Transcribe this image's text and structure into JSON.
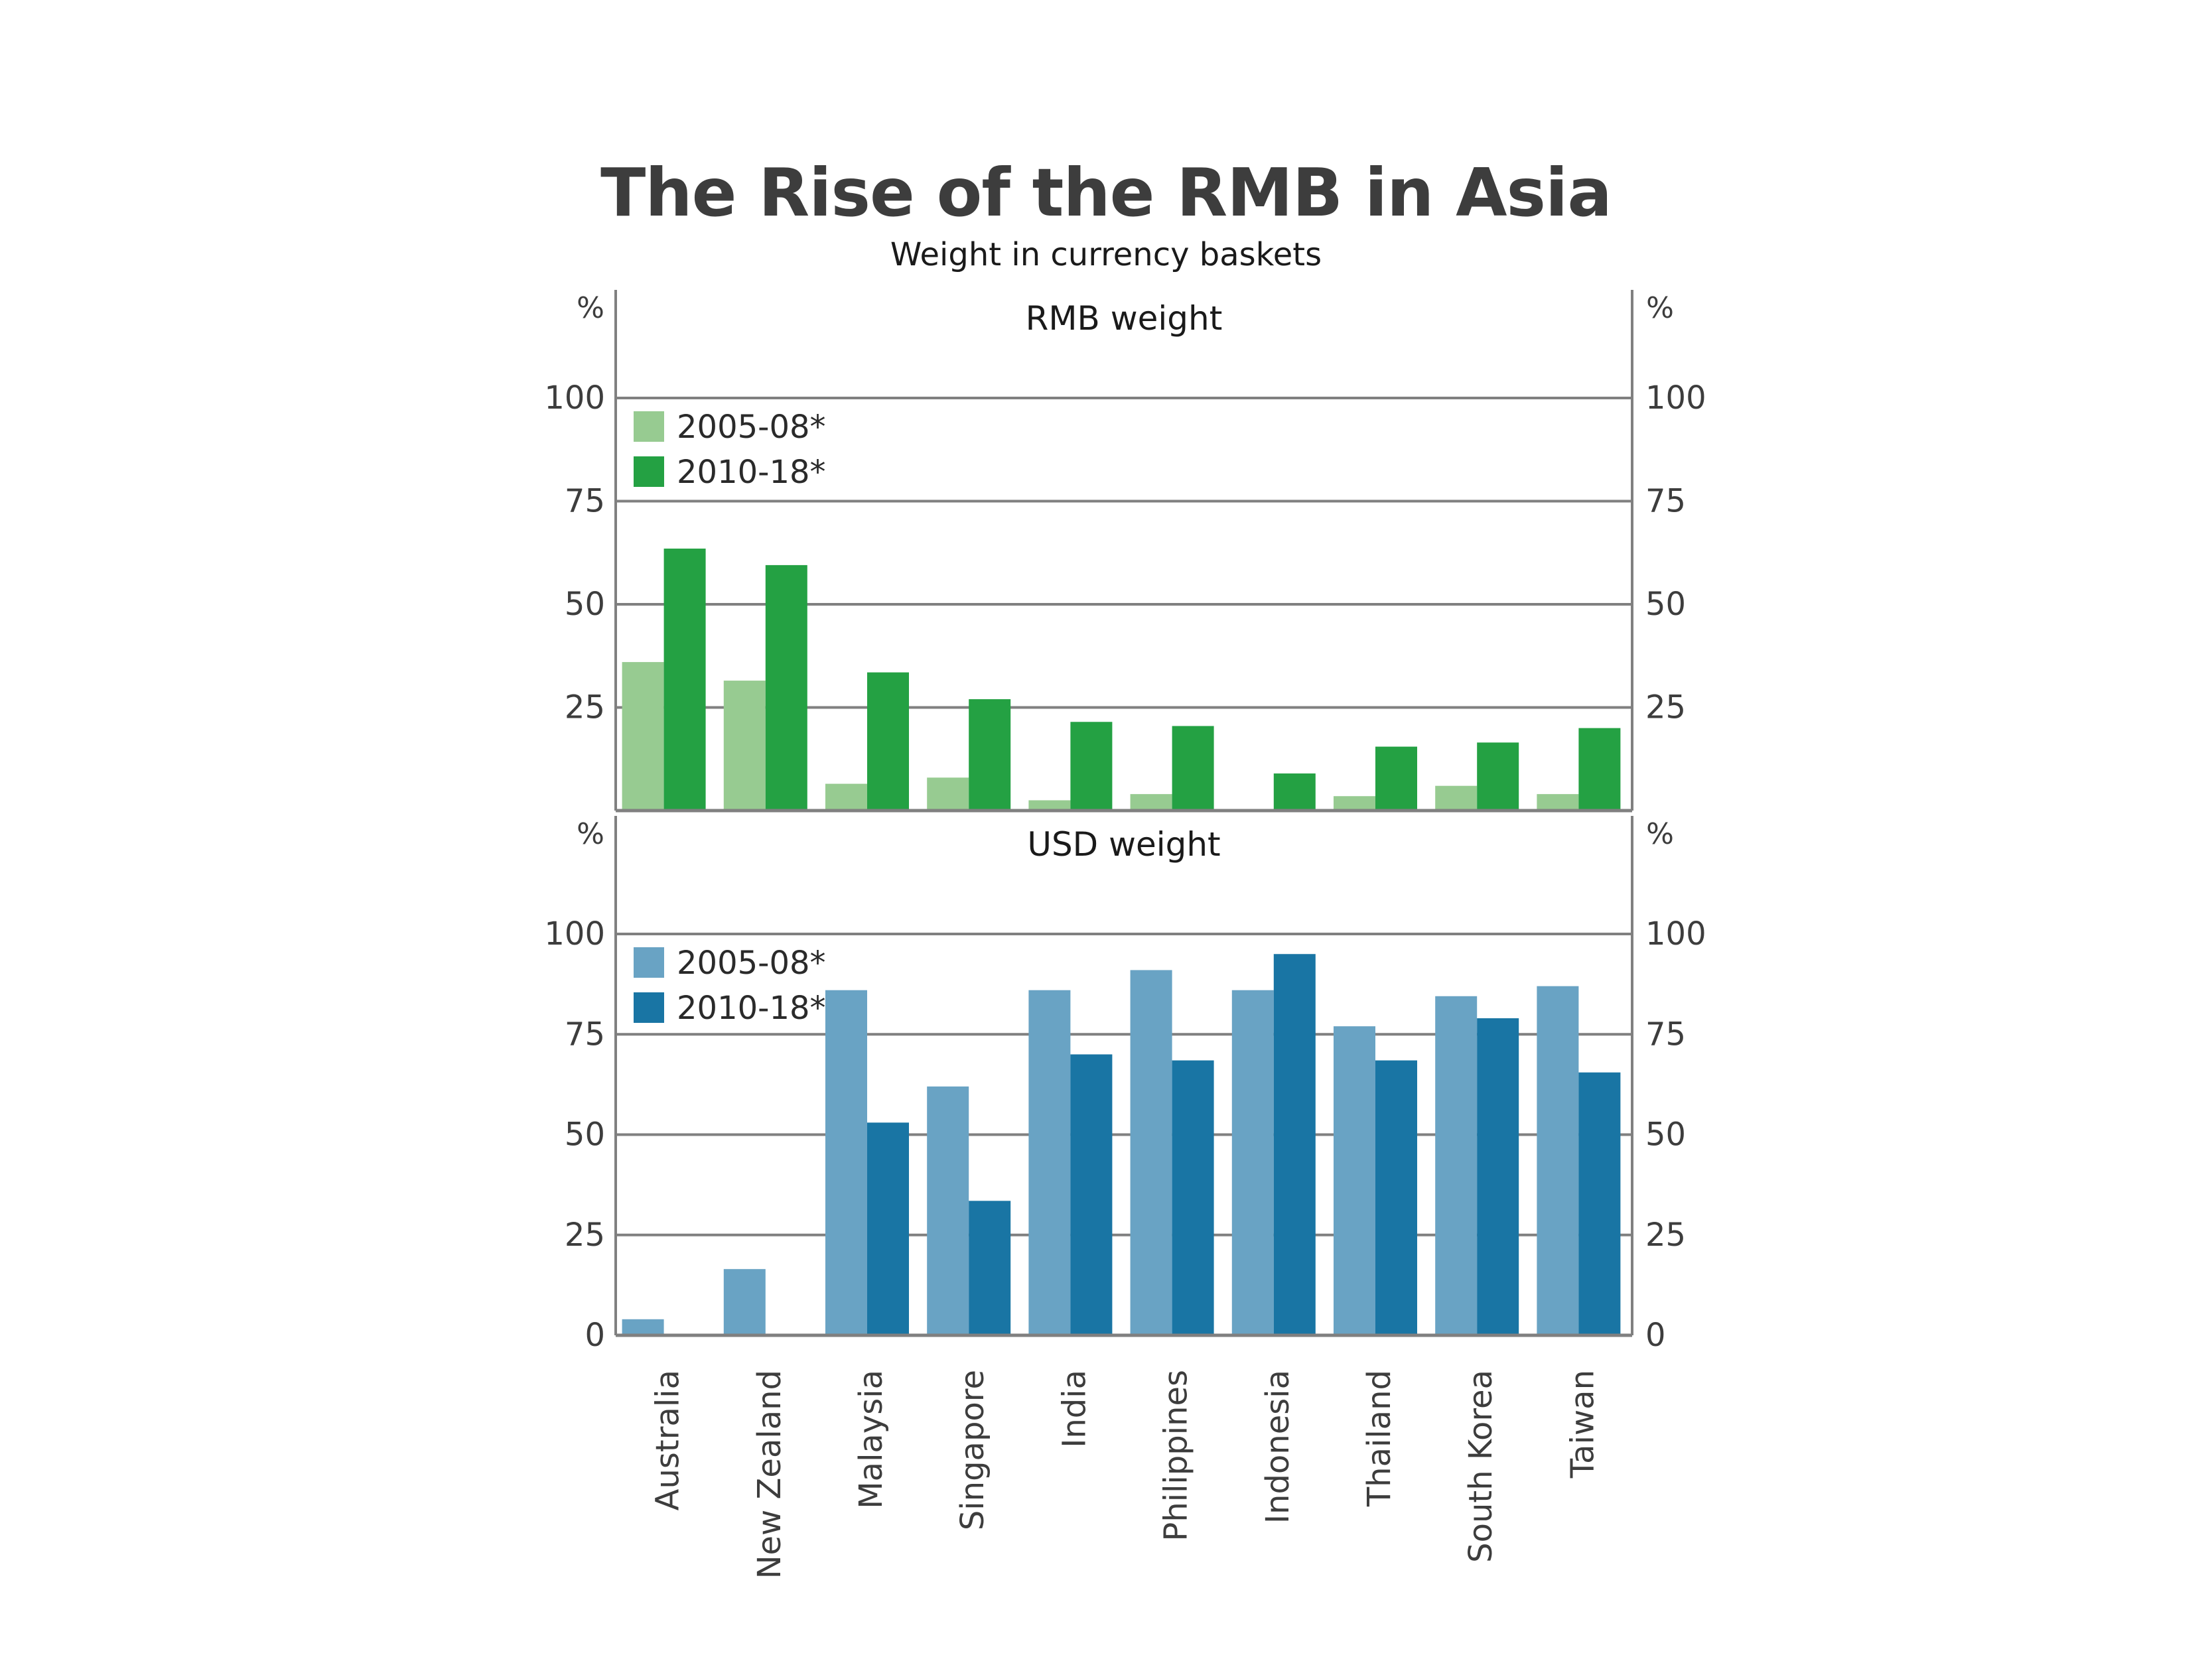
{
  "title": "The Rise of the RMB in Asia",
  "subtitle": "Weight in currency baskets",
  "colors": {
    "rmb_2005": "#97cb91",
    "rmb_2010": "#24a143",
    "usd_2005": "#69a3c4",
    "usd_2010": "#1975a4",
    "grid": "#808080",
    "text": "#3d3d3d"
  },
  "chart_data": [
    {
      "type": "bar",
      "title": "RMB weight",
      "unit_label": "%",
      "categories": [
        "Australia",
        "New Zealand",
        "Malaysia",
        "Singapore",
        "India",
        "Philippines",
        "Indonesia",
        "Thailand",
        "South Korea",
        "Taiwan"
      ],
      "series": [
        {
          "name": "2005-08*",
          "values": [
            36,
            31.5,
            6.5,
            8,
            2.5,
            4,
            0,
            3.5,
            6,
            4
          ]
        },
        {
          "name": "2010-18*",
          "values": [
            63.5,
            59.5,
            33.5,
            27,
            21.5,
            20.5,
            9,
            15.5,
            16.5,
            20
          ]
        }
      ],
      "yticks": [
        "25",
        "50",
        "75",
        "100"
      ],
      "ylim": [
        0,
        125
      ],
      "grid": true,
      "dual_y_axis": true,
      "legend_position": "top-left"
    },
    {
      "type": "bar",
      "title": "USD weight",
      "unit_label": "%",
      "categories": [
        "Australia",
        "New Zealand",
        "Malaysia",
        "Singapore",
        "India",
        "Philippines",
        "Indonesia",
        "Thailand",
        "South Korea",
        "Taiwan"
      ],
      "series": [
        {
          "name": "2005-08*",
          "values": [
            4,
            16.5,
            86,
            62,
            86,
            91,
            86,
            77,
            84.5,
            87
          ]
        },
        {
          "name": "2010-18*",
          "values": [
            0,
            0,
            53,
            33.5,
            70,
            68.5,
            95,
            68.5,
            79,
            65.5
          ]
        }
      ],
      "yticks": [
        "0",
        "25",
        "50",
        "75",
        "100"
      ],
      "ylim": [
        0,
        125
      ],
      "grid": true,
      "dual_y_axis": true,
      "legend_position": "top-left"
    }
  ]
}
